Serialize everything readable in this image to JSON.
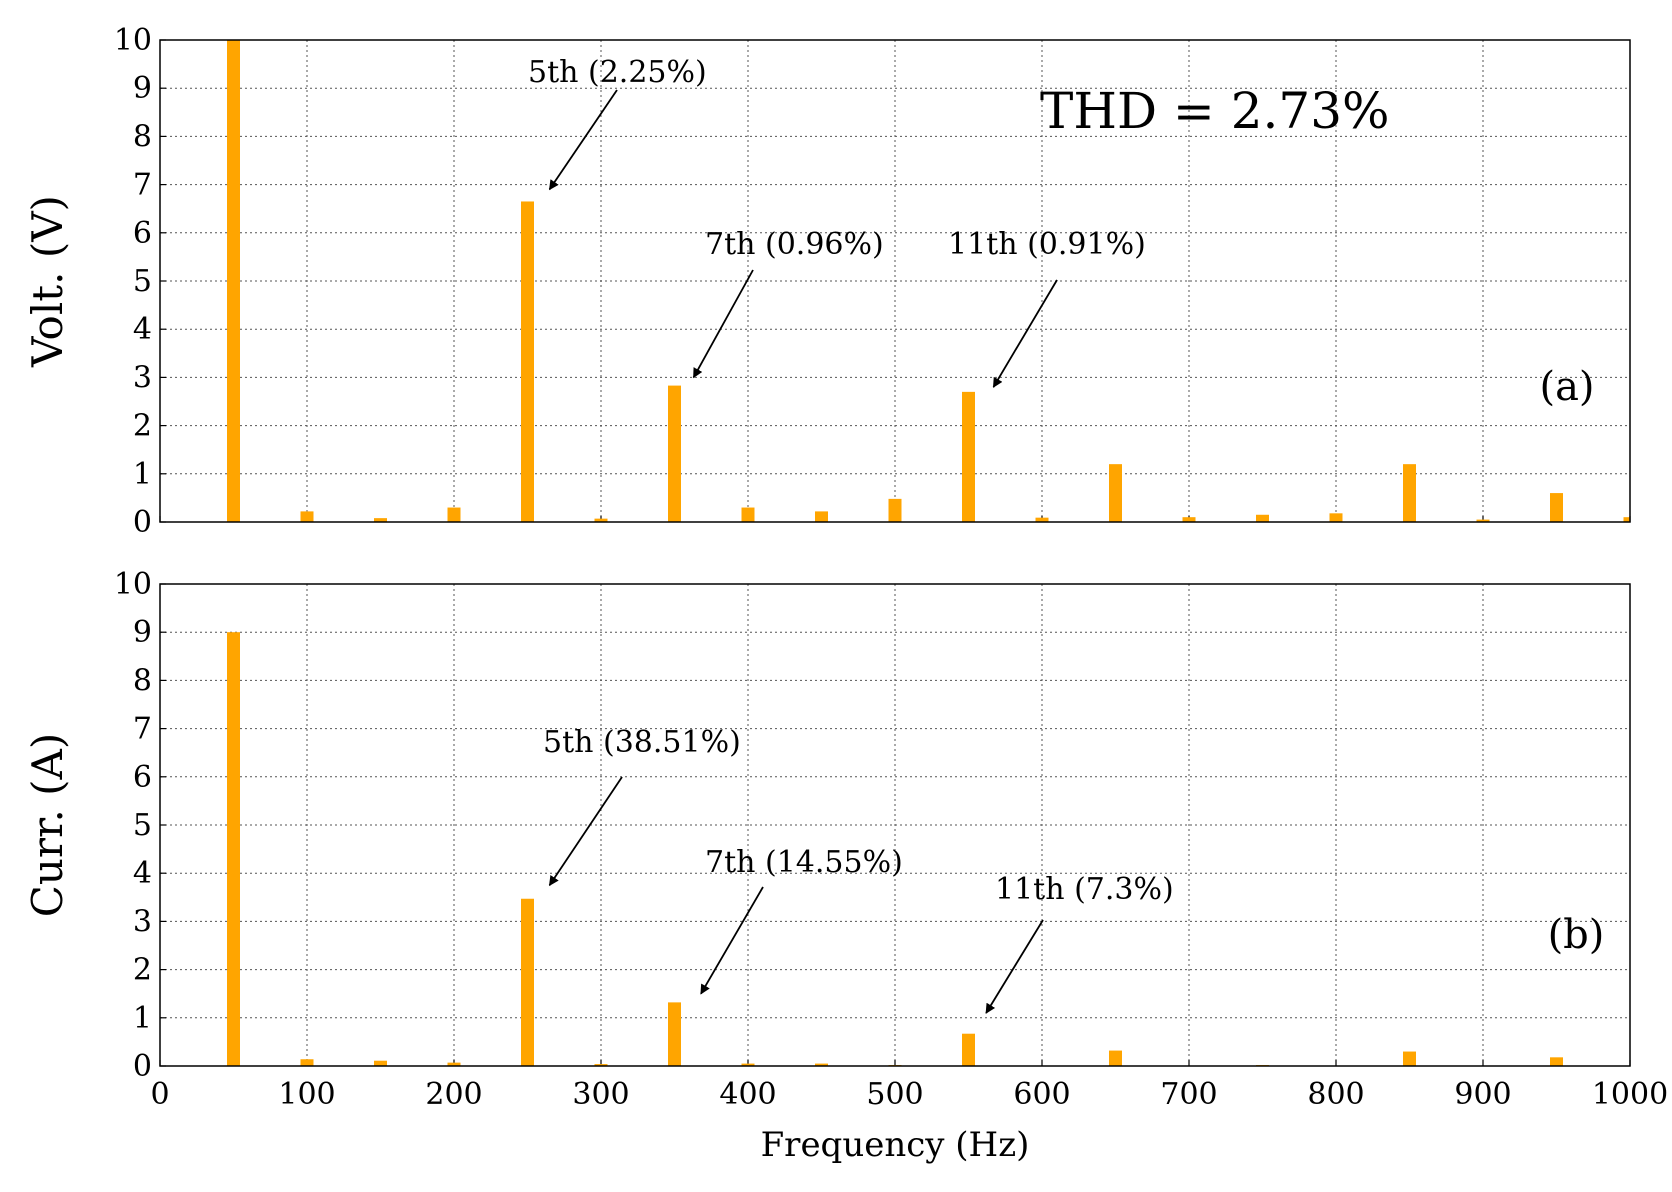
{
  "chart_data": [
    {
      "type": "bar",
      "panel_label": "(a)",
      "ylabel": "Volt. (V)",
      "xlabel": "Frequency (Hz)",
      "xlim": [
        0,
        1000
      ],
      "ylim": [
        0,
        10
      ],
      "xticks": [
        "0",
        "100",
        "200",
        "300",
        "400",
        "500",
        "600",
        "700",
        "800",
        "900",
        "1000"
      ],
      "yticks": [
        "0",
        "1",
        "2",
        "3",
        "4",
        "5",
        "6",
        "7",
        "8",
        "9",
        "10"
      ],
      "grid": true,
      "bar_color": "#FFA500",
      "x": [
        50,
        100,
        150,
        200,
        250,
        300,
        350,
        400,
        450,
        500,
        550,
        600,
        650,
        700,
        750,
        800,
        850,
        900,
        950,
        1000
      ],
      "values": [
        10,
        0.22,
        0.08,
        0.3,
        6.65,
        0.07,
        2.83,
        0.3,
        0.22,
        0.48,
        2.7,
        0.09,
        1.2,
        0.1,
        0.15,
        0.18,
        1.2,
        0.05,
        0.6,
        0.1
      ],
      "thd_text": "THD = 2.73%",
      "annotations": [
        {
          "text": "5th (2.25%)",
          "target_x": 265,
          "target_y": 6.9
        },
        {
          "text": "7th (0.96%)",
          "target_x": 363,
          "target_y": 3.0
        },
        {
          "text": "11th (0.91%)",
          "target_x": 567,
          "target_y": 2.8
        }
      ]
    },
    {
      "type": "bar",
      "panel_label": "(b)",
      "ylabel": "Curr. (A)",
      "xlabel": "Frequency (Hz)",
      "xlim": [
        0,
        1000
      ],
      "ylim": [
        0,
        10
      ],
      "xticks": [
        "0",
        "100",
        "200",
        "300",
        "400",
        "500",
        "600",
        "700",
        "800",
        "900",
        "1000"
      ],
      "yticks": [
        "0",
        "1",
        "2",
        "3",
        "4",
        "5",
        "6",
        "7",
        "8",
        "9",
        "10"
      ],
      "grid": true,
      "bar_color": "#FFA500",
      "x": [
        50,
        100,
        150,
        200,
        250,
        300,
        350,
        400,
        450,
        500,
        550,
        600,
        650,
        700,
        750,
        800,
        850,
        900,
        950,
        1000
      ],
      "values": [
        9,
        0.14,
        0.11,
        0.07,
        3.47,
        0.04,
        1.32,
        0.05,
        0.05,
        0.02,
        0.67,
        0.01,
        0.32,
        0.01,
        0.02,
        0.01,
        0.3,
        0.01,
        0.18,
        0.01
      ],
      "annotations": [
        {
          "text": "5th (38.51%)",
          "target_x": 265,
          "target_y": 3.75
        },
        {
          "text": "7th (14.55%)",
          "target_x": 368,
          "target_y": 1.5
        },
        {
          "text": "11th (7.3%)",
          "target_x": 562,
          "target_y": 1.1
        }
      ]
    }
  ]
}
